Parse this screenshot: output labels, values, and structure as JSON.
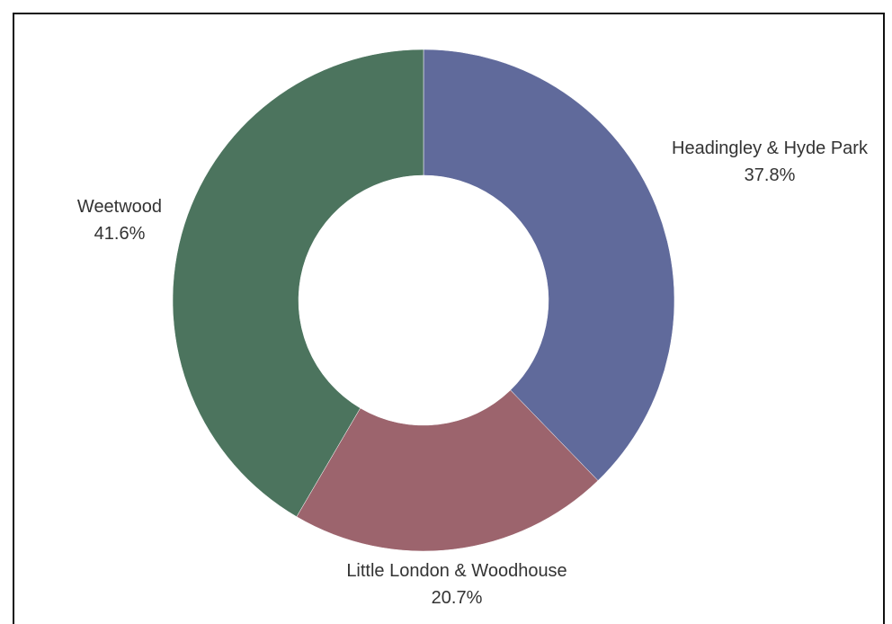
{
  "chart_data": {
    "type": "pie",
    "variant": "donut",
    "categories": [
      "Headingley & Hyde Park",
      "Little London & Woodhouse",
      "Weetwood"
    ],
    "values": [
      37.8,
      20.7,
      41.6
    ],
    "value_labels": [
      "37.8%",
      "20.7%",
      "41.6%"
    ],
    "colors": [
      "#606a9b",
      "#9c646d",
      "#4c745e"
    ],
    "start_angle_deg": 0,
    "direction": "clockwise",
    "legend": "none",
    "labels_position": "outside"
  }
}
